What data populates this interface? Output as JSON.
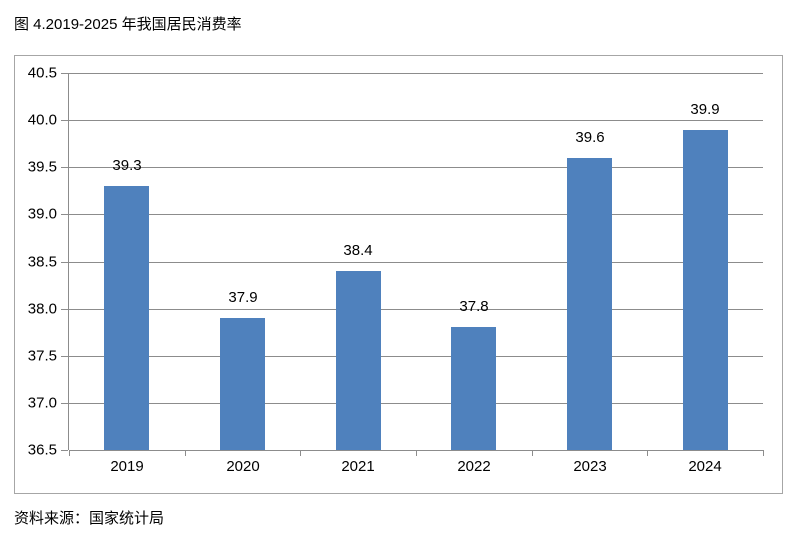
{
  "figure": {
    "title": "图 4.2019-2025 年我国居民消费率",
    "source": "资料来源：国家统计局"
  },
  "chart_data": {
    "type": "bar",
    "title": "图 4.2019-2025 年我国居民消费率",
    "categories": [
      "2019",
      "2020",
      "2021",
      "2022",
      "2023",
      "2024"
    ],
    "values": [
      39.3,
      37.9,
      38.4,
      37.8,
      39.6,
      39.9
    ],
    "xlabel": "",
    "ylabel": "",
    "ylim": [
      36.5,
      40.5
    ],
    "ytick_step": 0.5,
    "ytick_labels": [
      "36.5",
      "37.0",
      "37.5",
      "38.0",
      "38.5",
      "39.0",
      "39.5",
      "40.0",
      "40.5"
    ],
    "grid": true,
    "legend": "none",
    "data_labels": "outside-end",
    "colors": {
      "bar": "#4f81bd",
      "gridline": "#8c8c8c",
      "axis": "#8c8c8c",
      "frame": "#a6a6a6",
      "text": "#000000"
    }
  }
}
